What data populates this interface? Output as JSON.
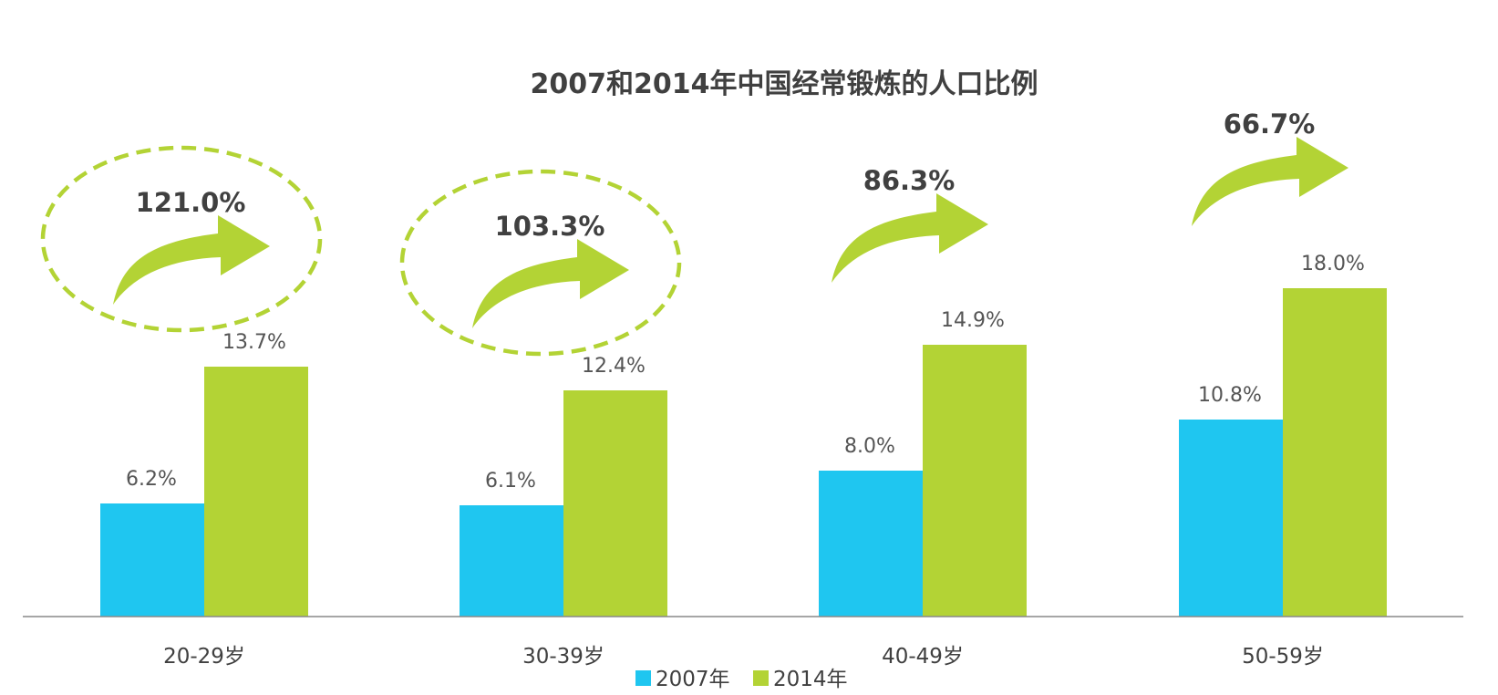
{
  "chart_data": {
    "type": "bar",
    "title": "2007和2014年中国经常锻炼的人口比例",
    "xlabel": "",
    "ylabel": "",
    "categories": [
      "20-29岁",
      "30-39岁",
      "40-49岁",
      "50-59岁"
    ],
    "series": [
      {
        "name": "2007年",
        "values": [
          6.2,
          6.1,
          8.0,
          10.8
        ],
        "labels": [
          "6.2%",
          "6.1%",
          "8.0%",
          "10.8%"
        ],
        "color": "#1fc6f0"
      },
      {
        "name": "2014年",
        "values": [
          13.7,
          12.4,
          14.9,
          18.0
        ],
        "labels": [
          "13.7%",
          "12.4%",
          "14.9%",
          "18.0%"
        ],
        "color": "#b3d335"
      }
    ],
    "growth": {
      "values": [
        121.0,
        103.3,
        86.3,
        66.7
      ],
      "labels": [
        "121.0%",
        "103.3%",
        "86.3%",
        "66.7%"
      ],
      "highlighted": [
        true,
        true,
        false,
        false
      ],
      "color": "#b3d335"
    },
    "ylim": [
      0,
      18
    ],
    "grid": false,
    "legend": "bottom-center",
    "axis_color": "#888888"
  }
}
